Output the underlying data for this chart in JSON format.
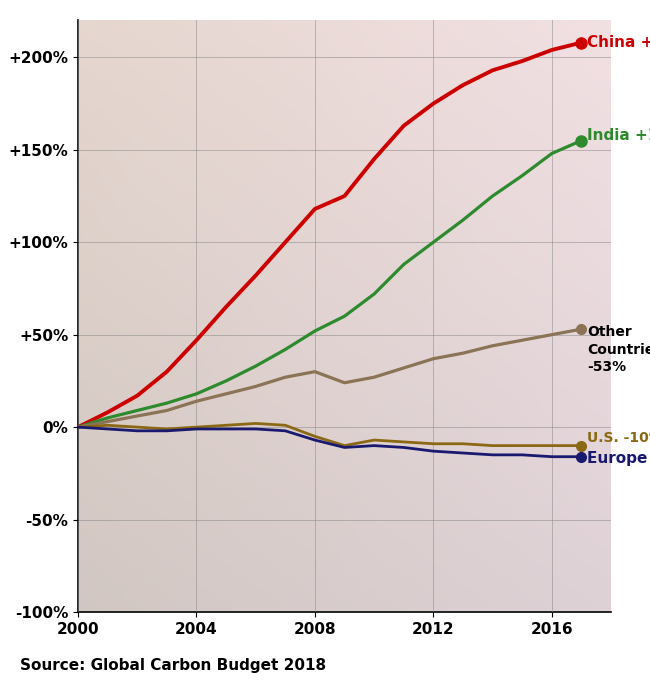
{
  "years": [
    2000,
    2001,
    2002,
    2003,
    2004,
    2005,
    2006,
    2007,
    2008,
    2009,
    2010,
    2011,
    2012,
    2013,
    2014,
    2015,
    2016,
    2017
  ],
  "china": [
    0,
    8,
    17,
    30,
    47,
    65,
    82,
    100,
    118,
    125,
    145,
    163,
    175,
    185,
    193,
    198,
    204,
    208
  ],
  "india": [
    0,
    5,
    9,
    13,
    18,
    25,
    33,
    42,
    52,
    60,
    72,
    88,
    100,
    112,
    125,
    136,
    148,
    155
  ],
  "other": [
    0,
    3,
    6,
    9,
    14,
    18,
    22,
    27,
    30,
    24,
    27,
    32,
    37,
    40,
    44,
    47,
    50,
    53
  ],
  "us": [
    0,
    1,
    0,
    -1,
    0,
    1,
    2,
    1,
    -5,
    -10,
    -7,
    -8,
    -9,
    -9,
    -10,
    -10,
    -10,
    -10
  ],
  "europe": [
    0,
    -1,
    -2,
    -2,
    -1,
    -1,
    -1,
    -2,
    -7,
    -11,
    -10,
    -11,
    -13,
    -14,
    -15,
    -15,
    -16,
    -16
  ],
  "china_color": "#cc0000",
  "india_color": "#2d8a2d",
  "other_color": "#8B7355",
  "us_color": "#8B6914",
  "europe_color": "#191970",
  "xlim_data": [
    2000,
    2017
  ],
  "xlim_plot": [
    2000,
    2018
  ],
  "ylim": [
    -100,
    220
  ],
  "yticks": [
    -100,
    -50,
    0,
    50,
    100,
    150,
    200
  ],
  "ytick_labels": [
    "-100%",
    "-50%",
    "0%",
    "+50%",
    "+100%",
    "+150%",
    "+200%"
  ],
  "xticks": [
    2000,
    2004,
    2008,
    2012,
    2016
  ],
  "source_text": "Source: Global Carbon Budget 2018",
  "grid_color": "#888888",
  "bg_color": "#c8c0b0",
  "fig_width": 6.5,
  "fig_height": 6.8,
  "dpi": 100
}
